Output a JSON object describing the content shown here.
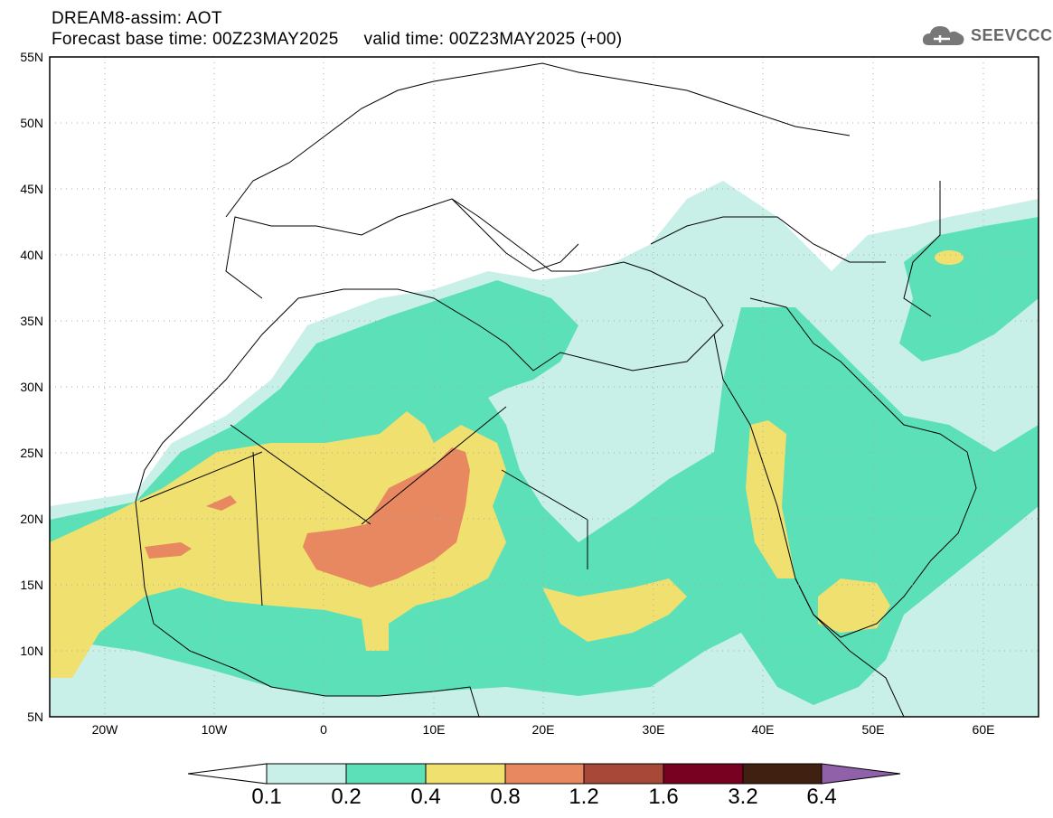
{
  "header": {
    "line1": "DREAM8-assim: AOT",
    "line2": "Forecast base time: 00Z23MAY2025     valid time: 00Z23MAY2025 (+00)"
  },
  "logo": {
    "text": "SEEVCCC",
    "icon": "cloud-icon"
  },
  "map": {
    "lat_range": [
      5,
      55
    ],
    "lon_range": [
      -25,
      65
    ],
    "lat_labels": [
      "55N",
      "50N",
      "45N",
      "40N",
      "35N",
      "30N",
      "25N",
      "20N",
      "15N",
      "10N",
      "5N"
    ],
    "lon_labels": [
      "20W",
      "10W",
      "0",
      "10E",
      "20E",
      "30E",
      "40E",
      "50E",
      "60E"
    ],
    "grid": "dotted"
  },
  "colorbar": {
    "levels": [
      "0.1",
      "0.2",
      "0.4",
      "0.8",
      "1.2",
      "1.6",
      "3.2",
      "6.4"
    ],
    "colors": [
      "#ffffff",
      "#c8f0e8",
      "#5ce0b8",
      "#f0e070",
      "#e88860",
      "#a84838",
      "#780020",
      "#402010",
      "#9060a8"
    ]
  }
}
